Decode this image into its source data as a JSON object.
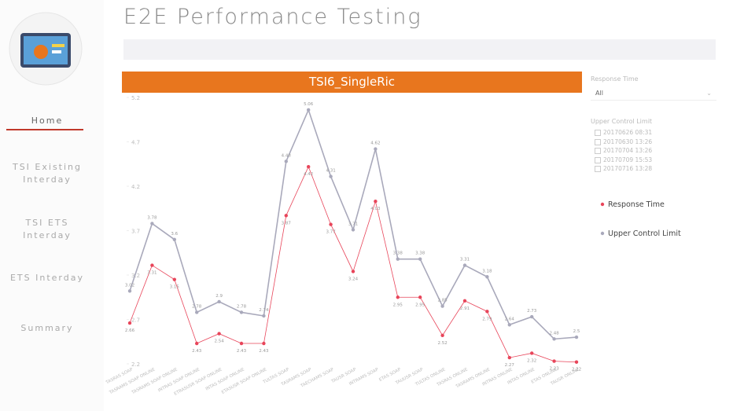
{
  "header": {
    "title": "E2E Performance Testing"
  },
  "nav": [
    {
      "label": "Home"
    },
    {
      "label": "TSI Existing Interday"
    },
    {
      "label": "TSI ETS Interday"
    },
    {
      "label": "ETS Interday"
    },
    {
      "label": "Summary"
    }
  ],
  "filters": {
    "response_time": {
      "label": "Response Time",
      "value": "All"
    },
    "upper_control_limit": {
      "label": "Upper Control Limit",
      "options": [
        "20170626 08:31",
        "20170630 13:26",
        "20170704 13:26",
        "20170709 15:53",
        "20170716 13:28"
      ]
    }
  },
  "chart_data": {
    "type": "line",
    "title": "TSI6_SingleRic",
    "categories": [
      "TASRAS SOAP",
      "TASRAMS SOAP ONLINE",
      "TASRAMS SOAP ONLINE",
      "INTRAS SOAP ONLINE",
      "ETRASUSR SOAP ONLINE",
      "INTAS SOAP ONLINE",
      "ETASUSR SOAP ONLINE",
      "TULTAS SOAP",
      "TASRAMS SOAP",
      "TAECHAMS SOAP",
      "TAUSR SOAP",
      "INTRAMS SOAP",
      "ETAS SOAP",
      "TAUUSR SOAP",
      "TULTAS ONLINE",
      "TASRAS ONLINE",
      "TASRAMS ONLINE",
      "INTRAS ONLINE",
      "INTAS ONLINE",
      "ETAS ONLINE",
      "TAUSR ONLINE"
    ],
    "series": [
      {
        "name": "Response Time",
        "color": "#e8455a",
        "values": [
          2.66,
          3.31,
          3.15,
          2.43,
          2.54,
          2.43,
          2.43,
          3.87,
          4.42,
          3.77,
          3.24,
          4.03,
          2.95,
          2.95,
          2.52,
          2.91,
          2.79,
          2.27,
          2.32,
          2.23,
          2.22
        ]
      },
      {
        "name": "Upper Control Limit",
        "color": "#a9a9bb",
        "values": [
          3.02,
          3.78,
          3.6,
          2.78,
          2.9,
          2.78,
          2.74,
          4.48,
          5.06,
          4.31,
          3.71,
          4.62,
          3.38,
          3.38,
          2.85,
          3.31,
          3.18,
          2.64,
          2.73,
          2.48,
          2.5
        ]
      }
    ],
    "ylim": [
      2.2,
      5.2
    ],
    "yticks": [
      2.2,
      2.7,
      3.2,
      3.7,
      4.2,
      4.7,
      5.2
    ]
  }
}
